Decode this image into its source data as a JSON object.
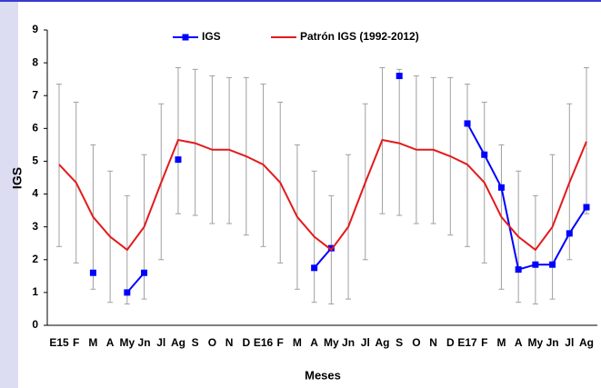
{
  "chart_data": {
    "type": "line",
    "y_label": "IGS",
    "x_label": "Meses",
    "categories": [
      "E15",
      "F",
      "M",
      "A",
      "My",
      "Jn",
      "Jl",
      "Ag",
      "S",
      "O",
      "N",
      "D",
      "E16",
      "F",
      "M",
      "A",
      "My",
      "Jn",
      "Jl",
      "Ag",
      "S",
      "O",
      "N",
      "D",
      "E17",
      "F",
      "M",
      "A",
      "My",
      "Jn",
      "Jl",
      "Ag"
    ],
    "series": [
      {
        "name": "IGS",
        "color": "#0000ff",
        "marker": "square",
        "values": [
          null,
          null,
          1.6,
          null,
          1.0,
          1.6,
          null,
          5.05,
          null,
          null,
          null,
          null,
          null,
          null,
          null,
          1.75,
          2.35,
          null,
          null,
          null,
          7.6,
          null,
          null,
          null,
          6.15,
          5.2,
          4.2,
          1.7,
          1.85,
          1.85,
          2.8,
          3.6
        ]
      },
      {
        "name": "Patrón IGS (1992-2012)",
        "color": "#e31a1c",
        "values": [
          4.9,
          4.35,
          3.3,
          2.7,
          2.3,
          3.0,
          4.35,
          5.65,
          5.55,
          5.35,
          5.35,
          5.15,
          4.9,
          4.35,
          3.3,
          2.7,
          2.3,
          3.0,
          4.35,
          5.65,
          5.55,
          5.35,
          5.35,
          5.15,
          4.9,
          4.35,
          3.3,
          2.7,
          2.3,
          3.0,
          4.35,
          5.6
        ],
        "lower": [
          2.4,
          1.9,
          1.1,
          0.7,
          0.65,
          0.8,
          2.0,
          3.4,
          3.35,
          3.1,
          3.1,
          2.75,
          2.4,
          1.9,
          1.1,
          0.7,
          0.65,
          0.8,
          2.0,
          3.4,
          3.35,
          3.1,
          3.1,
          2.75,
          2.4,
          1.9,
          1.1,
          0.7,
          0.65,
          0.8,
          2.0,
          3.4
        ],
        "upper": [
          7.35,
          6.8,
          5.5,
          4.7,
          3.95,
          5.2,
          6.75,
          7.85,
          7.8,
          7.6,
          7.55,
          7.55,
          7.35,
          6.8,
          5.5,
          4.7,
          3.95,
          5.2,
          6.75,
          7.85,
          7.8,
          7.6,
          7.55,
          7.55,
          7.35,
          6.8,
          5.5,
          4.7,
          3.95,
          5.2,
          6.75,
          7.85
        ]
      }
    ],
    "error_color": "#a0a0a0",
    "ylim": [
      0,
      9
    ],
    "yticks": [
      0,
      1,
      2,
      3,
      4,
      5,
      6,
      7,
      8,
      9
    ],
    "legend": "top"
  }
}
